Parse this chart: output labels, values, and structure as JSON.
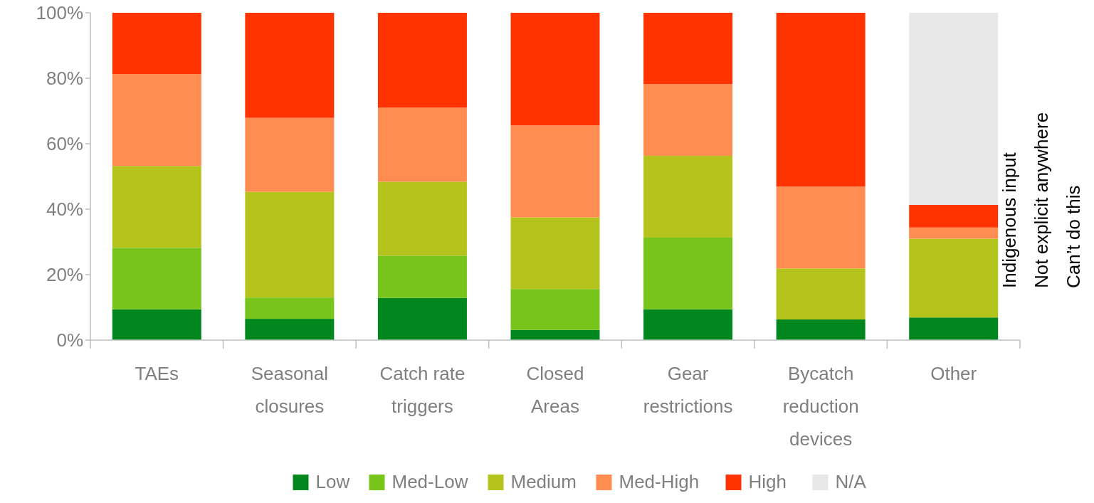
{
  "chart_data": {
    "type": "bar",
    "stacked": true,
    "categories": [
      "TAEs",
      "Seasonal closures",
      "Catch rate triggers",
      "Closed Areas",
      "Gear restrictions",
      "Bycatch reduction devices",
      "Other"
    ],
    "series": [
      {
        "name": "Low",
        "color": "#00881f",
        "values": [
          9.4,
          6.5,
          12.9,
          3.1,
          9.4,
          6.3,
          6.9
        ]
      },
      {
        "name": "Med-Low",
        "color": "#77c41a",
        "values": [
          18.8,
          6.5,
          12.9,
          12.5,
          21.9,
          0,
          0
        ]
      },
      {
        "name": "Medium",
        "color": "#b5c41c",
        "values": [
          25,
          32.3,
          22.6,
          21.9,
          25,
          15.6,
          24.1
        ]
      },
      {
        "name": "Med-High",
        "color": "#ff8c50",
        "values": [
          28.1,
          22.6,
          22.6,
          28.1,
          21.9,
          25,
          3.4
        ]
      },
      {
        "name": "High",
        "color": "#ff3300",
        "values": [
          18.7,
          32.1,
          29,
          34.4,
          21.8,
          53.1,
          6.9
        ]
      },
      {
        "name": "N/A",
        "color": "#e8e8e8",
        "values": [
          0,
          0,
          0,
          0,
          0,
          0,
          58.7
        ]
      }
    ],
    "ylim": [
      0,
      100
    ],
    "yticks": [
      {
        "value": 0,
        "label": "0%"
      },
      {
        "value": 20,
        "label": "20%"
      },
      {
        "value": 40,
        "label": "40%"
      },
      {
        "value": 60,
        "label": "60%"
      },
      {
        "value": 80,
        "label": "80%"
      },
      {
        "value": 100,
        "label": "100%"
      }
    ],
    "grid": false,
    "legend": "bottom",
    "annotations": [
      "Indigenous input",
      "Not explicit anywhere",
      "Can’t do this"
    ]
  }
}
